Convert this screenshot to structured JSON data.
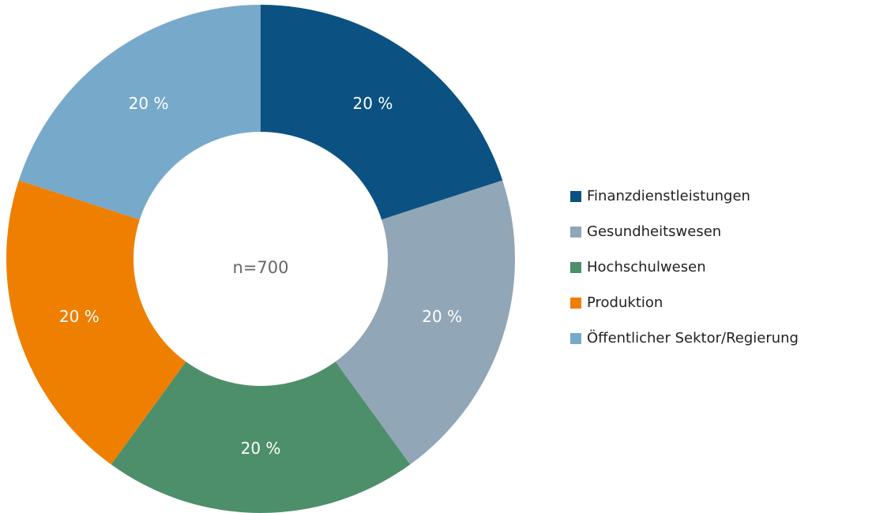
{
  "chart_data": {
    "type": "donut",
    "categories": [
      "Finanzdienstleistungen",
      "Gesundheitswesen",
      "Hochschulwesen",
      "Produktion",
      "Öffentlicher Sektor/Regierung"
    ],
    "values": [
      20,
      20,
      20,
      20,
      20
    ],
    "value_labels": [
      "20 %",
      "20 %",
      "20 %",
      "20 %",
      "20 %"
    ],
    "colors": [
      "#0b5282",
      "#91a6b6",
      "#4d8f6a",
      "#ef7f00",
      "#77a9ca"
    ],
    "center_label": "n=700",
    "legend": "right"
  }
}
